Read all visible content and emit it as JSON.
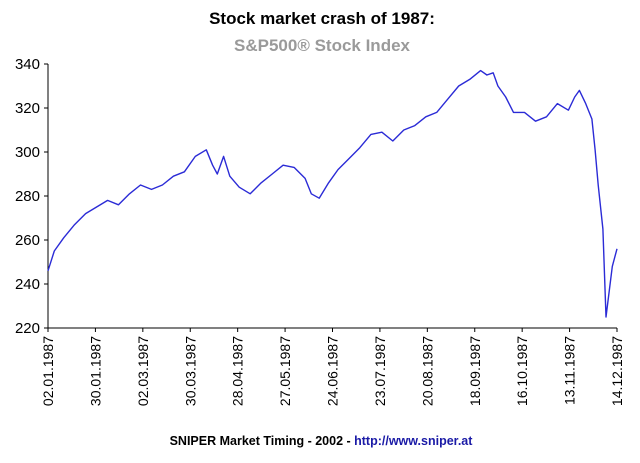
{
  "chart_data": {
    "type": "line",
    "title": "Stock market crash of 1987:",
    "subtitle": "S&P500® Stock Index",
    "ylim": [
      220,
      340
    ],
    "yticks": [
      "220",
      "240",
      "260",
      "280",
      "300",
      "320",
      "340"
    ],
    "xticks": [
      "02.01.1987",
      "30.01.1987",
      "02.03.1987",
      "30.03.1987",
      "28.04.1987",
      "27.05.1987",
      "24.06.1987",
      "23.07.1987",
      "20.08.1987",
      "18.09.1987",
      "16.10.1987",
      "13.11.1987",
      "14.12.1987"
    ],
    "grid": false,
    "line_color": "#2b2bd6",
    "series": [
      {
        "points": [
          [
            "1987-01-02",
            246
          ],
          [
            "1987-01-06",
            255
          ],
          [
            "1987-01-12",
            261
          ],
          [
            "1987-01-19",
            267
          ],
          [
            "1987-01-26",
            272
          ],
          [
            "1987-02-02",
            275
          ],
          [
            "1987-02-09",
            278
          ],
          [
            "1987-02-16",
            276
          ],
          [
            "1987-02-23",
            281
          ],
          [
            "1987-03-02",
            285
          ],
          [
            "1987-03-09",
            283
          ],
          [
            "1987-03-16",
            285
          ],
          [
            "1987-03-23",
            289
          ],
          [
            "1987-03-30",
            291
          ],
          [
            "1987-04-06",
            298
          ],
          [
            "1987-04-13",
            301
          ],
          [
            "1987-04-17",
            294
          ],
          [
            "1987-04-20",
            290
          ],
          [
            "1987-04-24",
            298
          ],
          [
            "1987-04-28",
            289
          ],
          [
            "1987-05-04",
            284
          ],
          [
            "1987-05-11",
            281
          ],
          [
            "1987-05-18",
            286
          ],
          [
            "1987-05-25",
            290
          ],
          [
            "1987-06-01",
            294
          ],
          [
            "1987-06-08",
            293
          ],
          [
            "1987-06-15",
            288
          ],
          [
            "1987-06-19",
            281
          ],
          [
            "1987-06-24",
            279
          ],
          [
            "1987-06-30",
            286
          ],
          [
            "1987-07-06",
            292
          ],
          [
            "1987-07-13",
            297
          ],
          [
            "1987-07-20",
            302
          ],
          [
            "1987-07-27",
            308
          ],
          [
            "1987-08-03",
            309
          ],
          [
            "1987-08-10",
            305
          ],
          [
            "1987-08-17",
            310
          ],
          [
            "1987-08-24",
            312
          ],
          [
            "1987-08-31",
            316
          ],
          [
            "1987-09-07",
            318
          ],
          [
            "1987-09-14",
            324
          ],
          [
            "1987-09-21",
            330
          ],
          [
            "1987-09-28",
            333
          ],
          [
            "1987-10-05",
            337
          ],
          [
            "1987-10-09",
            335
          ],
          [
            "1987-10-13",
            336
          ],
          [
            "1987-10-16",
            330
          ],
          [
            "1987-10-21",
            325
          ],
          [
            "1987-10-26",
            318
          ],
          [
            "1987-11-02",
            318
          ],
          [
            "1987-11-09",
            314
          ],
          [
            "1987-11-16",
            316
          ],
          [
            "1987-11-23",
            322
          ],
          [
            "1987-11-30",
            319
          ],
          [
            "1987-12-04",
            325
          ],
          [
            "1987-12-07",
            328
          ],
          [
            "1987-12-11",
            322
          ],
          [
            "1987-12-15",
            315
          ],
          [
            "1987-12-17",
            301
          ],
          [
            "1987-12-19",
            285
          ],
          [
            "1987-12-22",
            265
          ],
          [
            "1987-12-24",
            225
          ],
          [
            "1987-12-28",
            248
          ],
          [
            "1987-12-31",
            256
          ]
        ]
      }
    ]
  },
  "footer": {
    "text": "SNIPER Market Timing - 2002 - ",
    "link": "http://www.sniper.at"
  }
}
